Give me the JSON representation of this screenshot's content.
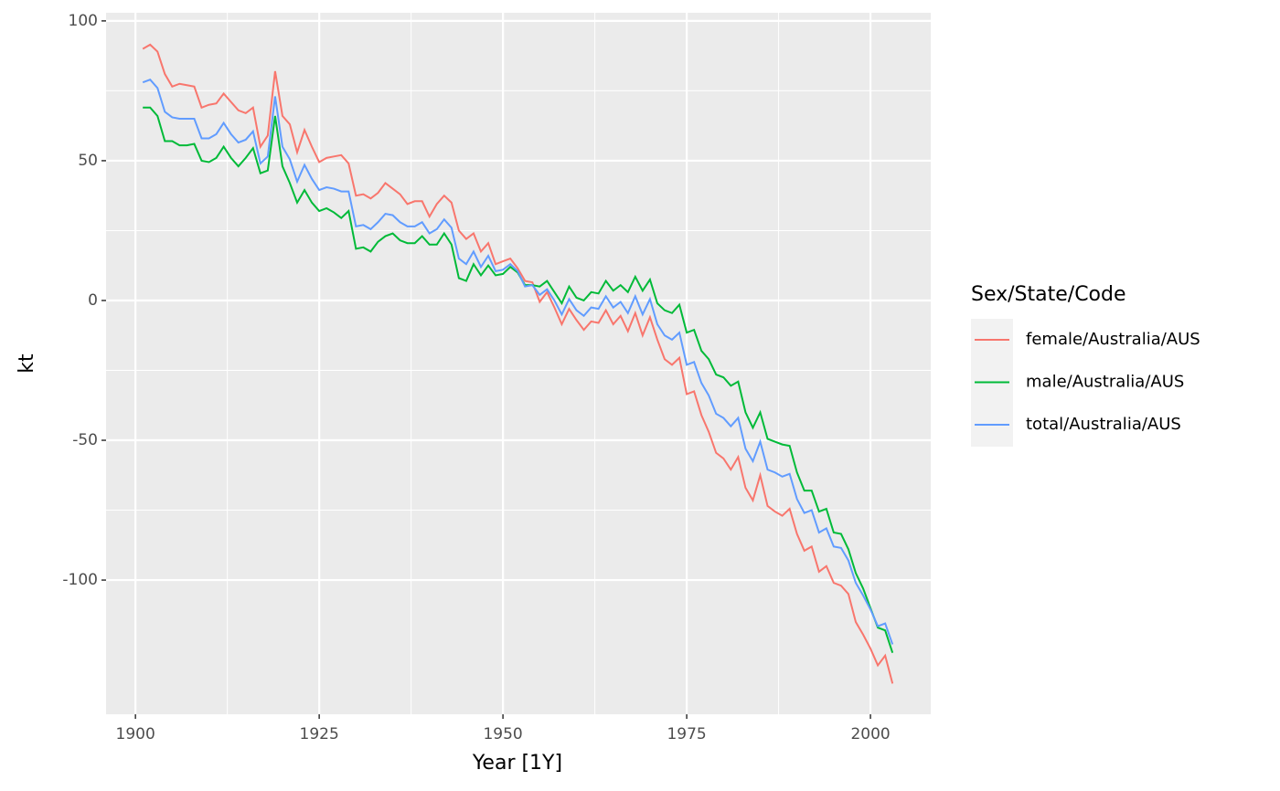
{
  "chart_data": {
    "type": "line",
    "x_label": "Year [1Y]",
    "y_label": "kt",
    "legend_title": "Sex/State/Code",
    "legend_position": "right",
    "grid": true,
    "xlim": [
      1896.0,
      2008.2
    ],
    "ylim": [
      -148,
      102.9
    ],
    "xticks": [
      1900,
      1925,
      1950,
      1975,
      2000
    ],
    "yticks": [
      -100,
      -50,
      0,
      50,
      100
    ],
    "x": [
      1901,
      1902,
      1903,
      1904,
      1905,
      1906,
      1907,
      1908,
      1909,
      1910,
      1911,
      1912,
      1913,
      1914,
      1915,
      1916,
      1917,
      1918,
      1919,
      1920,
      1921,
      1922,
      1923,
      1924,
      1925,
      1926,
      1927,
      1928,
      1929,
      1930,
      1931,
      1932,
      1933,
      1934,
      1935,
      1936,
      1937,
      1938,
      1939,
      1940,
      1941,
      1942,
      1943,
      1944,
      1945,
      1946,
      1947,
      1948,
      1949,
      1950,
      1951,
      1952,
      1953,
      1954,
      1955,
      1956,
      1957,
      1958,
      1959,
      1960,
      1961,
      1962,
      1963,
      1964,
      1965,
      1966,
      1967,
      1968,
      1969,
      1970,
      1971,
      1972,
      1973,
      1974,
      1975,
      1976,
      1977,
      1978,
      1979,
      1980,
      1981,
      1982,
      1983,
      1984,
      1985,
      1986,
      1987,
      1988,
      1989,
      1990,
      1991,
      1992,
      1993,
      1994,
      1995,
      1996,
      1997,
      1998,
      1999,
      2000,
      2001,
      2002,
      2003
    ],
    "series": [
      {
        "name": "female/Australia/AUS",
        "color": "#f8766d",
        "values": [
          90,
          91.5,
          89,
          81,
          76.5,
          77.5,
          77,
          76.5,
          69,
          70,
          70.5,
          74,
          71,
          68,
          67,
          69,
          55,
          59,
          82,
          66,
          63,
          53,
          61,
          55,
          49.5,
          51,
          51.5,
          52,
          49,
          37.5,
          38,
          36.5,
          38.5,
          42,
          40,
          38,
          34.5,
          35.5,
          35.5,
          30,
          34.5,
          37.5,
          35,
          25,
          22,
          24,
          17.5,
          20.5,
          13,
          14,
          15,
          11.5,
          7,
          6.5,
          -0.5,
          3,
          -2.5,
          -8.5,
          -3,
          -7,
          -10.5,
          -7.5,
          -8,
          -3.5,
          -8.5,
          -5.5,
          -11,
          -4.5,
          -12.5,
          -6,
          -14,
          -21,
          -23,
          -20.5,
          -33.5,
          -32.5,
          -41,
          -47,
          -54.5,
          -56.5,
          -60.5,
          -56,
          -67,
          -71.5,
          -62.5,
          -73.5,
          -75.5,
          -77,
          -74.5,
          -83.5,
          -89.5,
          -88,
          -97,
          -95,
          -101,
          -102,
          -105,
          -115,
          -119.5,
          -124.5,
          -130.5,
          -127,
          -137
        ]
      },
      {
        "name": "male/Australia/AUS",
        "color": "#00ba38",
        "values": [
          69,
          69,
          66,
          57,
          57,
          55.5,
          55.5,
          56,
          50,
          49.5,
          51,
          55,
          51,
          48,
          51,
          54.5,
          45.5,
          46.5,
          66,
          48,
          42,
          35,
          39.5,
          35,
          32,
          33,
          31.5,
          29.5,
          32,
          18.5,
          19,
          17.5,
          21,
          23,
          24,
          21.5,
          20.5,
          20.5,
          23,
          20,
          20,
          24,
          20,
          8,
          7,
          13,
          9,
          12.5,
          9,
          9.5,
          12,
          10,
          5.5,
          5.5,
          5,
          7,
          3,
          -1,
          5,
          1,
          0,
          3,
          2.5,
          7,
          3.5,
          5.5,
          3,
          8.5,
          3.5,
          7.5,
          -1,
          -3.5,
          -4.5,
          -1.5,
          -11.5,
          -10.5,
          -18,
          -21,
          -26.5,
          -27.5,
          -30.5,
          -29,
          -40,
          -45.5,
          -40,
          -49.5,
          -50.5,
          -51.5,
          -52,
          -61.5,
          -68,
          -68,
          -75.5,
          -74.5,
          -83,
          -83.5,
          -89,
          -97.5,
          -103,
          -110,
          -117,
          -118,
          -126
        ]
      },
      {
        "name": "total/Australia/AUS",
        "color": "#619cff",
        "values": [
          78,
          79,
          76,
          67.5,
          65.5,
          65,
          65,
          65,
          58,
          58,
          59.5,
          63.5,
          59.5,
          56.5,
          57.5,
          60.5,
          49,
          51.5,
          73,
          55,
          50.5,
          42.5,
          48.5,
          43.5,
          39.5,
          40.5,
          40,
          39,
          39,
          26.5,
          27,
          25.5,
          28,
          31,
          30.5,
          28,
          26.5,
          26.5,
          28,
          24,
          25.5,
          29,
          26,
          15,
          13,
          17.5,
          12,
          16,
          10.5,
          11,
          13,
          10.5,
          5,
          5.5,
          2,
          4,
          0,
          -5,
          0.5,
          -3.5,
          -5.5,
          -2.5,
          -3,
          1.5,
          -2.5,
          -0.5,
          -4.5,
          1.5,
          -5,
          0.5,
          -8.5,
          -12.5,
          -14,
          -11.5,
          -23,
          -22,
          -29.5,
          -34,
          -40.5,
          -42,
          -45,
          -42,
          -53,
          -57.5,
          -50.5,
          -60.5,
          -61.5,
          -63,
          -62,
          -71,
          -76,
          -75,
          -83,
          -81.5,
          -88,
          -88.5,
          -93,
          -101,
          -105.5,
          -110.5,
          -116.5,
          -115.5,
          -123
        ]
      }
    ]
  }
}
